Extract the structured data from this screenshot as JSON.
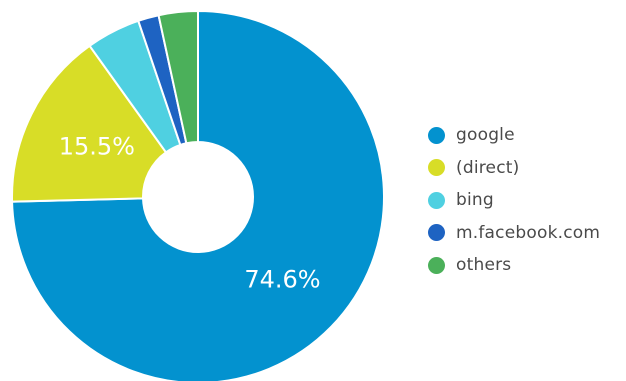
{
  "chart_data": {
    "type": "pie",
    "donut": true,
    "start_angle_deg": 0,
    "legend_position": "right",
    "slices": [
      {
        "label": "google",
        "value": 74.6,
        "color": "#0392cf",
        "data_label": "74.6%"
      },
      {
        "label": "(direct)",
        "value": 15.5,
        "color": "#d8dd27",
        "data_label": "15.5%"
      },
      {
        "label": "bing",
        "value": 4.7,
        "color": "#4fd0e1",
        "data_label": ""
      },
      {
        "label": "m.facebook.com",
        "value": 1.8,
        "color": "#1e63c2",
        "data_label": ""
      },
      {
        "label": "others",
        "value": 3.4,
        "color": "#4bb05a",
        "data_label": ""
      }
    ]
  }
}
